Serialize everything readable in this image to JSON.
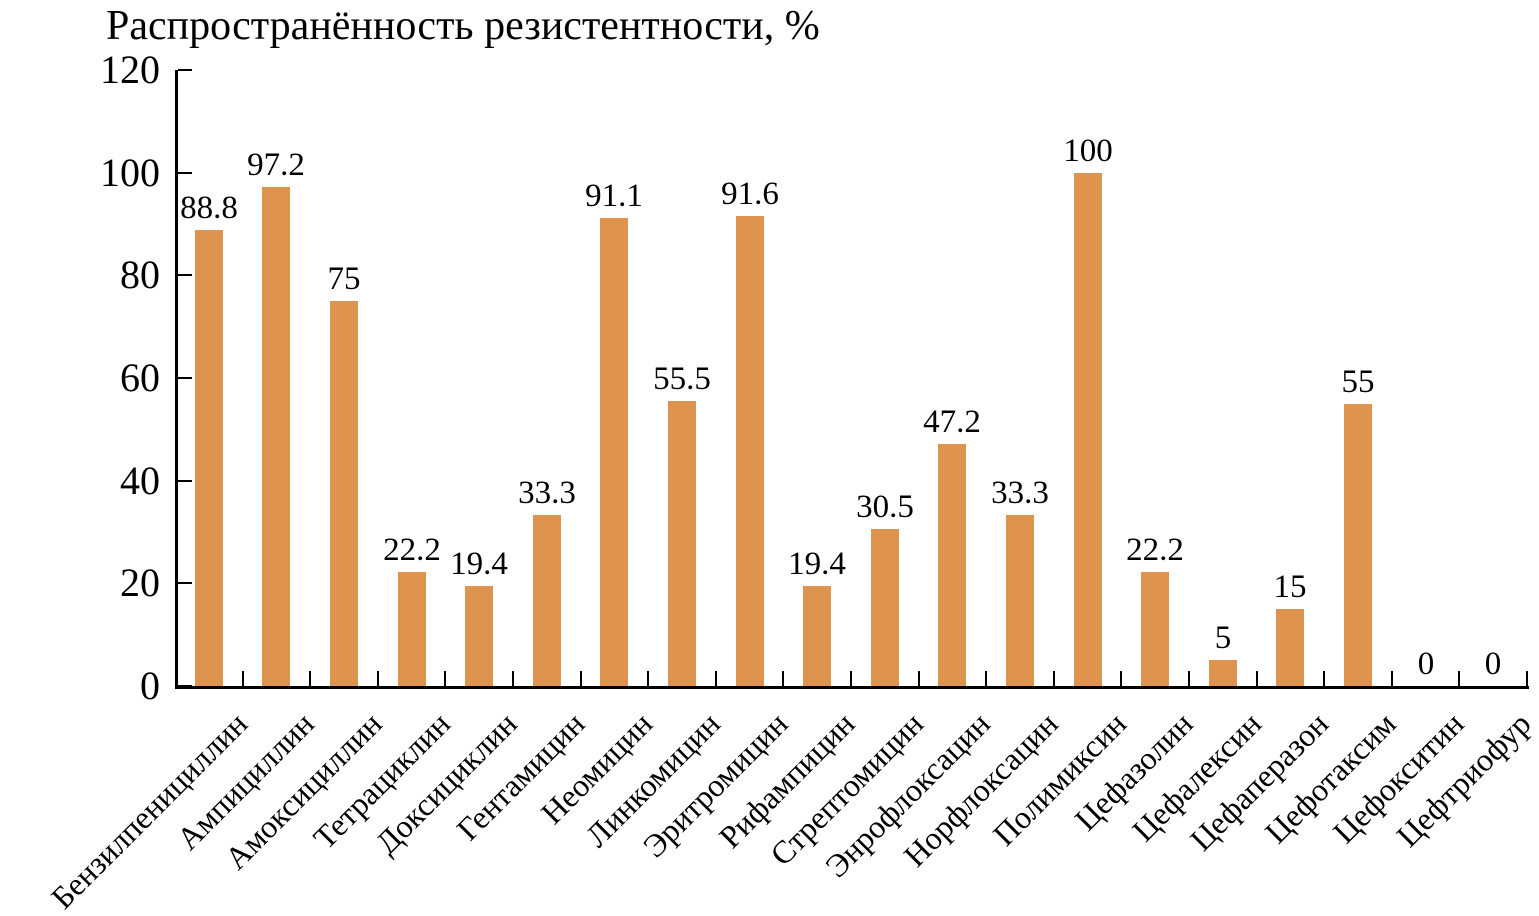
{
  "chart_data": {
    "type": "bar",
    "title": "Распространённость резистентности, %",
    "categories": [
      "Бензилпенициллин",
      "Ампициллин",
      "Амоксициллин",
      "Тетрациклин",
      "Доксициклин",
      "Гентамицин",
      "Неомицин",
      "Линкомицин",
      "Эритромицин",
      "Рифампицин",
      "Стрептомицин",
      "Энрофлоксацин",
      "Норфлоксацин",
      "Полимиксин",
      "Цефазолин",
      "Цефалексин",
      "Цефаперазон",
      "Цефотаксим",
      "Цефокситин",
      "Цефтриофур"
    ],
    "values": [
      88.8,
      97.2,
      75,
      22.2,
      19.4,
      33.3,
      91.1,
      55.5,
      91.6,
      19.4,
      30.5,
      47.2,
      33.3,
      100,
      22.2,
      5,
      15,
      55,
      0,
      0
    ],
    "value_labels": [
      "88.8",
      "97.2",
      "75",
      "22.2",
      "19.4",
      "33.3",
      "91.1",
      "55.5",
      "91.6",
      "19.4",
      "30.5",
      "47.2",
      "33.3",
      "100",
      "22.2",
      "5",
      "15",
      "55",
      "0",
      "0"
    ],
    "xlabel": "",
    "ylabel": "",
    "ylim": [
      0,
      120
    ],
    "yticks": [
      0,
      20,
      40,
      60,
      80,
      100,
      120
    ],
    "grid": false,
    "legend_position": "none",
    "bar_color": "#DE934E",
    "axis_color": "#000000",
    "label_rotation_deg": 45
  }
}
